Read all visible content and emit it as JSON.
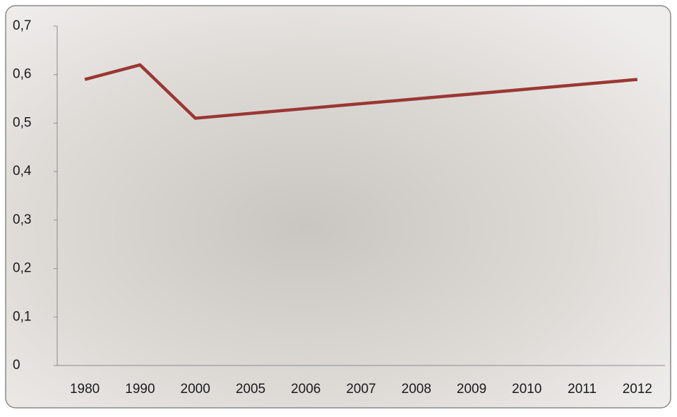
{
  "chart_data": {
    "type": "line",
    "categories": [
      "1980",
      "1990",
      "2000",
      "2005",
      "2006",
      "2007",
      "2008",
      "2009",
      "2010",
      "2011",
      "2012"
    ],
    "values": [
      0.59,
      0.62,
      0.51,
      0.52,
      0.53,
      0.54,
      0.55,
      0.56,
      0.57,
      0.58,
      0.59
    ],
    "color": "#9b3733",
    "ylim": [
      0,
      0.7
    ],
    "yticks": [
      0,
      {
        "value": 0.1,
        "label": "0,1"
      },
      {
        "value": 0.2,
        "label": "0,2"
      },
      {
        "value": 0.3,
        "label": "0,3"
      },
      {
        "value": 0.4,
        "label": "0,4"
      },
      {
        "value": 0.5,
        "label": "0,5"
      },
      {
        "value": 0.6,
        "label": "0,6"
      },
      {
        "value": 0.7,
        "label": "0,7"
      }
    ],
    "grid": false
  }
}
